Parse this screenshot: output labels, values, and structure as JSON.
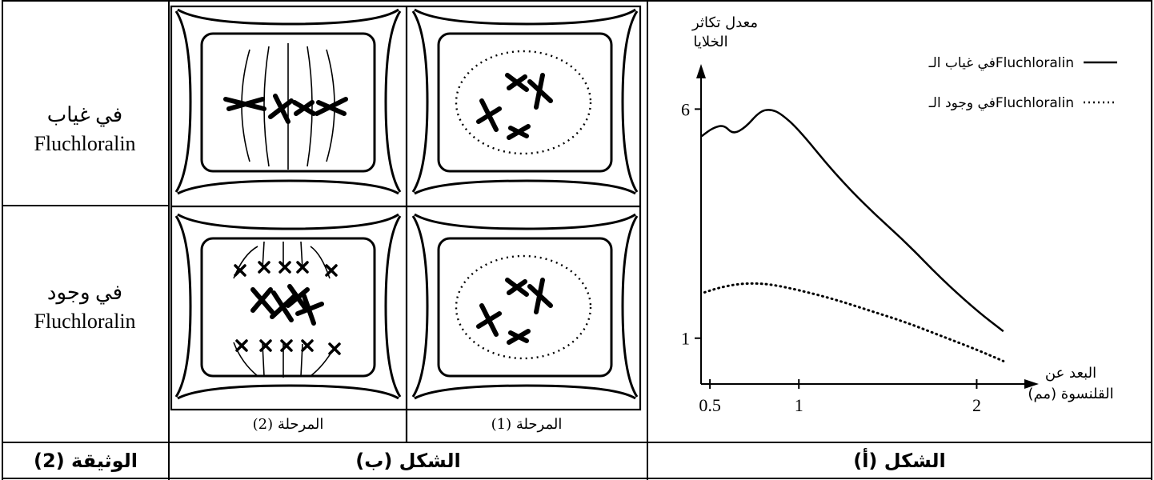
{
  "document": {
    "row_labels": [
      {
        "line1": "في غياب",
        "line2": "Fluchloralin"
      },
      {
        "line1": "في وجود",
        "line2": "Fluchloralin"
      }
    ],
    "stage_labels": [
      "المرحلة (2)",
      "المرحلة (1)"
    ],
    "captions": {
      "document": "الوثيقة (2)",
      "figure_b": "الشكل (ب)",
      "figure_a": "الشكل (أ)"
    }
  },
  "chart_data": {
    "type": "line",
    "ylabel_line1": "معدل تكاثر",
    "ylabel_line2": "الخلايا",
    "xlabel_line1": "البعد عن",
    "xlabel_line2": "القلنسوة (مم)",
    "x_ticks": [
      "0.5",
      "1",
      "2"
    ],
    "y_ticks": [
      "6",
      "1"
    ],
    "xlim": [
      0.45,
      2.25
    ],
    "ylim": [
      0,
      6.6
    ],
    "legend_position": "top-right",
    "series": [
      {
        "name": "في غياب الـFluchloralin",
        "style": "solid",
        "x": [
          0.45,
          0.52,
          0.58,
          0.63,
          0.7,
          0.78,
          0.84,
          0.9,
          1.0,
          1.2,
          1.4,
          1.6,
          1.8,
          2.0,
          2.15
        ],
        "y": [
          5.4,
          5.6,
          5.65,
          5.45,
          5.6,
          5.95,
          6.0,
          5.9,
          5.55,
          4.6,
          3.8,
          3.1,
          2.3,
          1.6,
          1.15
        ]
      },
      {
        "name": "في وجود الـFluchloralin",
        "style": "dotted",
        "x": [
          0.47,
          0.55,
          0.65,
          0.75,
          0.85,
          1.0,
          1.2,
          1.4,
          1.6,
          1.8,
          2.0,
          2.15
        ],
        "y": [
          2.0,
          2.1,
          2.18,
          2.2,
          2.17,
          2.05,
          1.85,
          1.6,
          1.35,
          1.05,
          0.75,
          0.5
        ]
      }
    ]
  }
}
